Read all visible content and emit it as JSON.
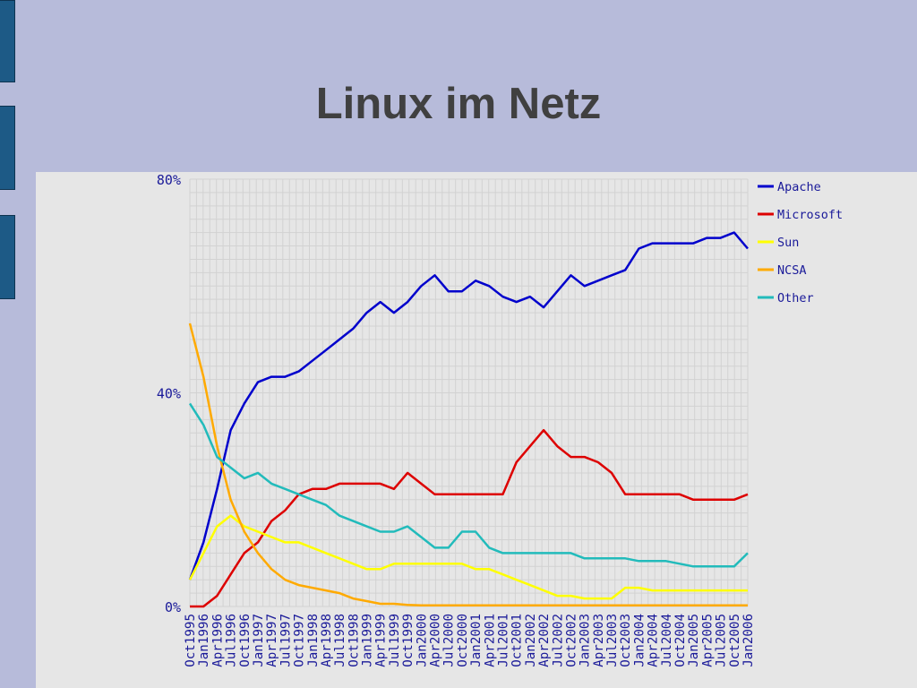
{
  "slide": {
    "title": "Linux im Netz"
  },
  "chart_data": {
    "type": "line",
    "title": "",
    "xlabel": "",
    "ylabel": "",
    "ylim": [
      0,
      80
    ],
    "y_ticks": [
      "0%",
      "40%",
      "80%"
    ],
    "y_tick_values": [
      0,
      40,
      80
    ],
    "grid": true,
    "legend_position": "right",
    "categories": [
      "Oct1995",
      "Jan1996",
      "Apr1996",
      "Jul1996",
      "Oct1996",
      "Jan1997",
      "Apr1997",
      "Jul1997",
      "Oct1997",
      "Jan1998",
      "Apr1998",
      "Jul1998",
      "Oct1998",
      "Jan1999",
      "Apr1999",
      "Jul1999",
      "Oct1999",
      "Jan2000",
      "Apr2000",
      "Jul2000",
      "Oct2000",
      "Jan2001",
      "Apr2001",
      "Jul2001",
      "Oct2001",
      "Jan2002",
      "Apr2002",
      "Jul2002",
      "Oct2002",
      "Jan2003",
      "Apr2003",
      "Jul2003",
      "Oct2003",
      "Jan2004",
      "Apr2004",
      "Jul2004",
      "Oct2004",
      "Jan2005",
      "Apr2005",
      "Jul2005",
      "Oct2005",
      "Jan2006"
    ],
    "series": [
      {
        "name": "Apache",
        "color": "#0000cc",
        "values": [
          5,
          12,
          22,
          33,
          38,
          42,
          43,
          43,
          44,
          46,
          48,
          50,
          52,
          55,
          57,
          55,
          57,
          60,
          62,
          59,
          59,
          61,
          60,
          58,
          57,
          58,
          56,
          59,
          62,
          60,
          61,
          62,
          63,
          67,
          68,
          68,
          68,
          68,
          69,
          69,
          70,
          67
        ]
      },
      {
        "name": "Microsoft",
        "color": "#dd0000",
        "values": [
          0,
          0,
          2,
          6,
          10,
          12,
          16,
          18,
          21,
          22,
          22,
          23,
          23,
          23,
          23,
          22,
          25,
          23,
          21,
          21,
          21,
          21,
          21,
          21,
          27,
          30,
          33,
          30,
          28,
          28,
          27,
          25,
          21,
          21,
          21,
          21,
          21,
          20,
          20,
          20,
          20,
          21
        ]
      },
      {
        "name": "Sun",
        "color": "#ffff00",
        "values": [
          5,
          10,
          15,
          17,
          15,
          14,
          13,
          12,
          12,
          11,
          10,
          9,
          8,
          7,
          7,
          8,
          8,
          8,
          8,
          8,
          8,
          7,
          7,
          6,
          5,
          4,
          3,
          2,
          2,
          1.5,
          1.5,
          1.5,
          3.5,
          3.5,
          3,
          3,
          3,
          3,
          3,
          3,
          3,
          3
        ]
      },
      {
        "name": "NCSA",
        "color": "#ffaa00",
        "values": [
          53,
          43,
          30,
          20,
          14,
          10,
          7,
          5,
          4,
          3.5,
          3,
          2.5,
          1.5,
          1,
          0.5,
          0.5,
          0.3,
          0.2,
          0.2,
          0.2,
          0.2,
          0.2,
          0.2,
          0.2,
          0.2,
          0.2,
          0.2,
          0.2,
          0.2,
          0.2,
          0.2,
          0.2,
          0.2,
          0.2,
          0.2,
          0.2,
          0.2,
          0.2,
          0.2,
          0.2,
          0.2,
          0.2
        ]
      },
      {
        "name": "Other",
        "color": "#22bbbb",
        "values": [
          38,
          34,
          28,
          26,
          24,
          25,
          23,
          22,
          21,
          20,
          19,
          17,
          16,
          15,
          14,
          14,
          15,
          13,
          11,
          11,
          14,
          14,
          11,
          10,
          10,
          10,
          10,
          10,
          10,
          9,
          9,
          9,
          9,
          8.5,
          8.5,
          8.5,
          8,
          7.5,
          7.5,
          7.5,
          7.5,
          10
        ]
      }
    ]
  }
}
